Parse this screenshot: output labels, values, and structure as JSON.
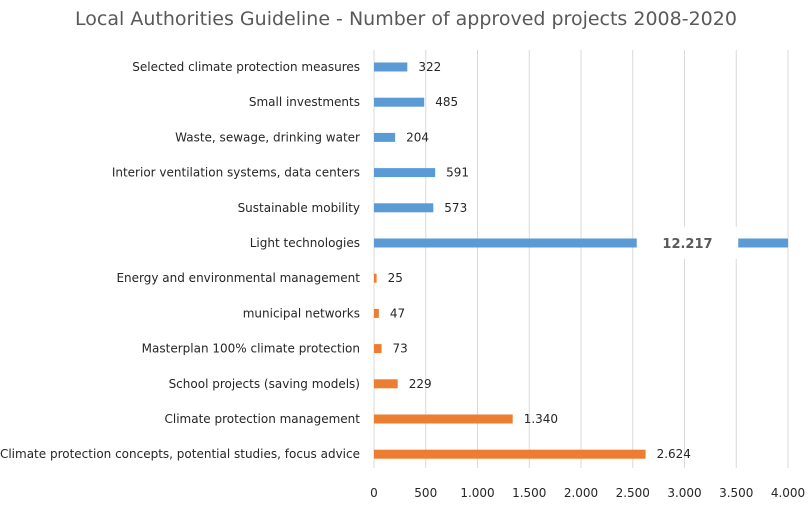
{
  "chart_data": {
    "type": "bar",
    "orientation": "horizontal",
    "title": "Local Authorities Guideline - Number of approved projects 2008-2020",
    "xlabel": "",
    "ylabel": "",
    "xlim": [
      0,
      4000
    ],
    "x_ticks": [
      0,
      500,
      1000,
      1500,
      2000,
      2500,
      3000,
      3500,
      4000
    ],
    "x_tick_labels": [
      "0",
      "500",
      "1.000",
      "1.500",
      "2.000",
      "2.500",
      "3.000",
      "3.500",
      "4.000"
    ],
    "grid": "vertical",
    "axis_break": {
      "at_value_start": 2500,
      "at_value_end": 3500,
      "note": "bar truncated"
    },
    "categories": [
      "Selected climate protection measures",
      "Small investments",
      "Waste, sewage, drinking water",
      "Interior ventilation systems, data centers",
      "Sustainable mobility",
      "Light technologies",
      "Energy and environmental management",
      "municipal networks",
      "Masterplan 100% climate protection",
      "School projects (saving models)",
      "Climate protection management",
      "Climate protection concepts, potential studies, focus advice"
    ],
    "values": [
      322,
      485,
      204,
      591,
      573,
      12217,
      25,
      47,
      73,
      229,
      1340,
      2624
    ],
    "value_labels": [
      "322",
      "485",
      "204",
      "591",
      "573",
      "12.217",
      "25",
      "47",
      "73",
      "229",
      "1.340",
      "2.624"
    ],
    "bar_colors": [
      "#5b9bd5",
      "#5b9bd5",
      "#5b9bd5",
      "#5b9bd5",
      "#5b9bd5",
      "#5b9bd5",
      "#ed7d31",
      "#ed7d31",
      "#ed7d31",
      "#ed7d31",
      "#ed7d31",
      "#ed7d31"
    ],
    "colors": {
      "blue": "#5b9bd5",
      "orange": "#ed7d31"
    }
  }
}
